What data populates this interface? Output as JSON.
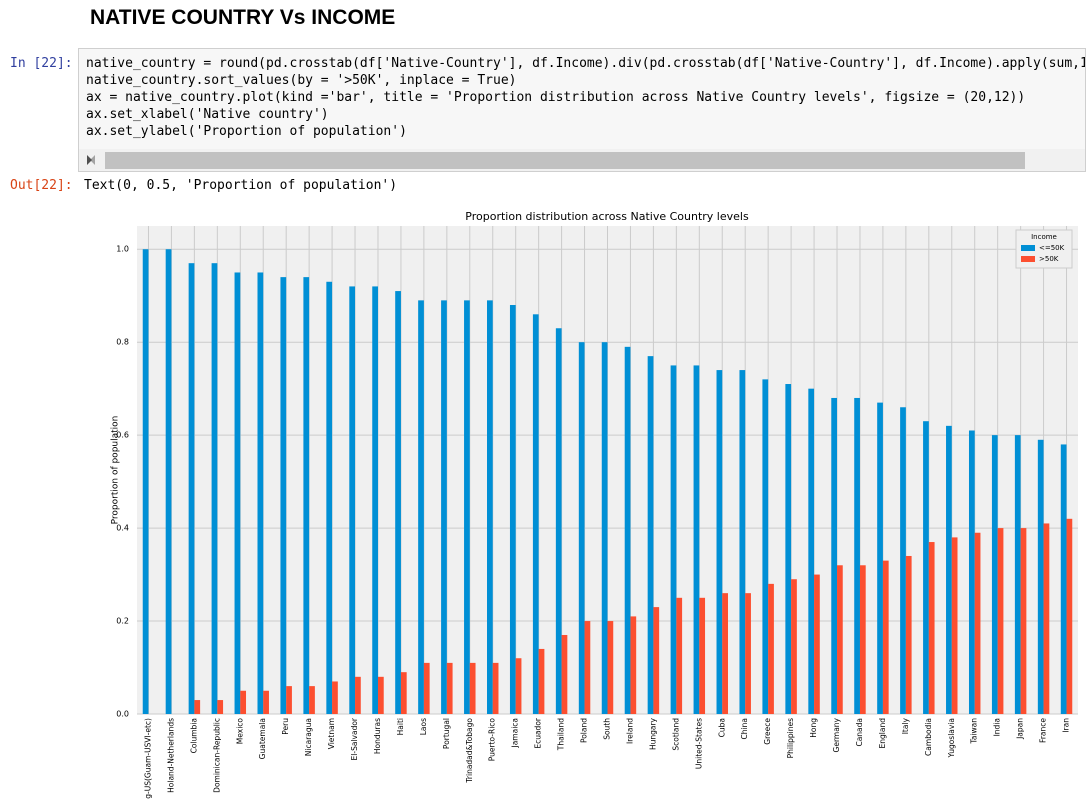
{
  "heading": "NATIVE COUNTRY Vs INCOME",
  "cell": {
    "in_prompt": "In [22]:",
    "code": [
      "native_country = round(pd.crosstab(df['Native-Country'], df.Income).div(pd.crosstab(df['Native-Country'], df.Income).apply(sum,1),",
      "native_country.sort_values(by = '>50K', inplace = True)",
      "ax = native_country.plot(kind ='bar', title = 'Proportion distribution across Native Country levels', figsize = (20,12))",
      "ax.set_xlabel('Native country')",
      "ax.set_ylabel('Proportion of population')"
    ],
    "out_prompt": "Out[22]:",
    "output": "Text(0, 0.5, 'Proportion of population')"
  },
  "chart_data": {
    "type": "bar",
    "title": "Proportion distribution across Native Country levels",
    "y_label": "Proportion of population",
    "categories": [
      "g-US(Guam-USVI-etc)",
      "Holand-Netherlands",
      "Columbia",
      "Dominican-Republic",
      "Mexico",
      "Guatemala",
      "Peru",
      "Nicaragua",
      "Vietnam",
      "El-Salvador",
      "Honduras",
      "Haiti",
      "Laos",
      "Portugal",
      "Trinadad&Tobago",
      "Puerto-Rico",
      "Jamaica",
      "Ecuador",
      "Thailand",
      "Poland",
      "South",
      "Ireland",
      "Hungary",
      "Scotland",
      "United-States",
      "Cuba",
      "China",
      "Greece",
      "Philippines",
      "Hong",
      "Germany",
      "Canada",
      "England",
      "Italy",
      "Cambodia",
      "Yugoslavia",
      "Taiwan",
      "India",
      "Japan",
      "France",
      "Iran"
    ],
    "series": [
      {
        "name": "<=50K",
        "color": "#008fd5",
        "values": [
          1.0,
          1.0,
          0.97,
          0.97,
          0.95,
          0.95,
          0.94,
          0.94,
          0.93,
          0.92,
          0.92,
          0.91,
          0.89,
          0.89,
          0.89,
          0.89,
          0.88,
          0.86,
          0.83,
          0.8,
          0.8,
          0.79,
          0.77,
          0.75,
          0.75,
          0.74,
          0.74,
          0.72,
          0.71,
          0.7,
          0.68,
          0.68,
          0.67,
          0.66,
          0.63,
          0.62,
          0.61,
          0.6,
          0.6,
          0.59,
          0.58
        ]
      },
      {
        "name": ">50K",
        "color": "#fc4f30",
        "values": [
          0,
          0,
          0.03,
          0.03,
          0.05,
          0.05,
          0.06,
          0.06,
          0.07,
          0.08,
          0.08,
          0.09,
          0.11,
          0.11,
          0.11,
          0.11,
          0.12,
          0.14,
          0.17,
          0.2,
          0.2,
          0.21,
          0.23,
          0.25,
          0.25,
          0.26,
          0.26,
          0.28,
          0.29,
          0.3,
          0.32,
          0.32,
          0.33,
          0.34,
          0.37,
          0.38,
          0.39,
          0.4,
          0.4,
          0.41,
          0.42
        ]
      }
    ],
    "ylim": [
      0,
      1.05
    ],
    "yticks": [
      {
        "value": 0,
        "label": "0.0"
      },
      0.2,
      0.4,
      0.6,
      0.8,
      {
        "value": 1,
        "label": "1.0"
      }
    ],
    "grid": true,
    "legend_title": "Income",
    "legend_position": "upper-right"
  }
}
